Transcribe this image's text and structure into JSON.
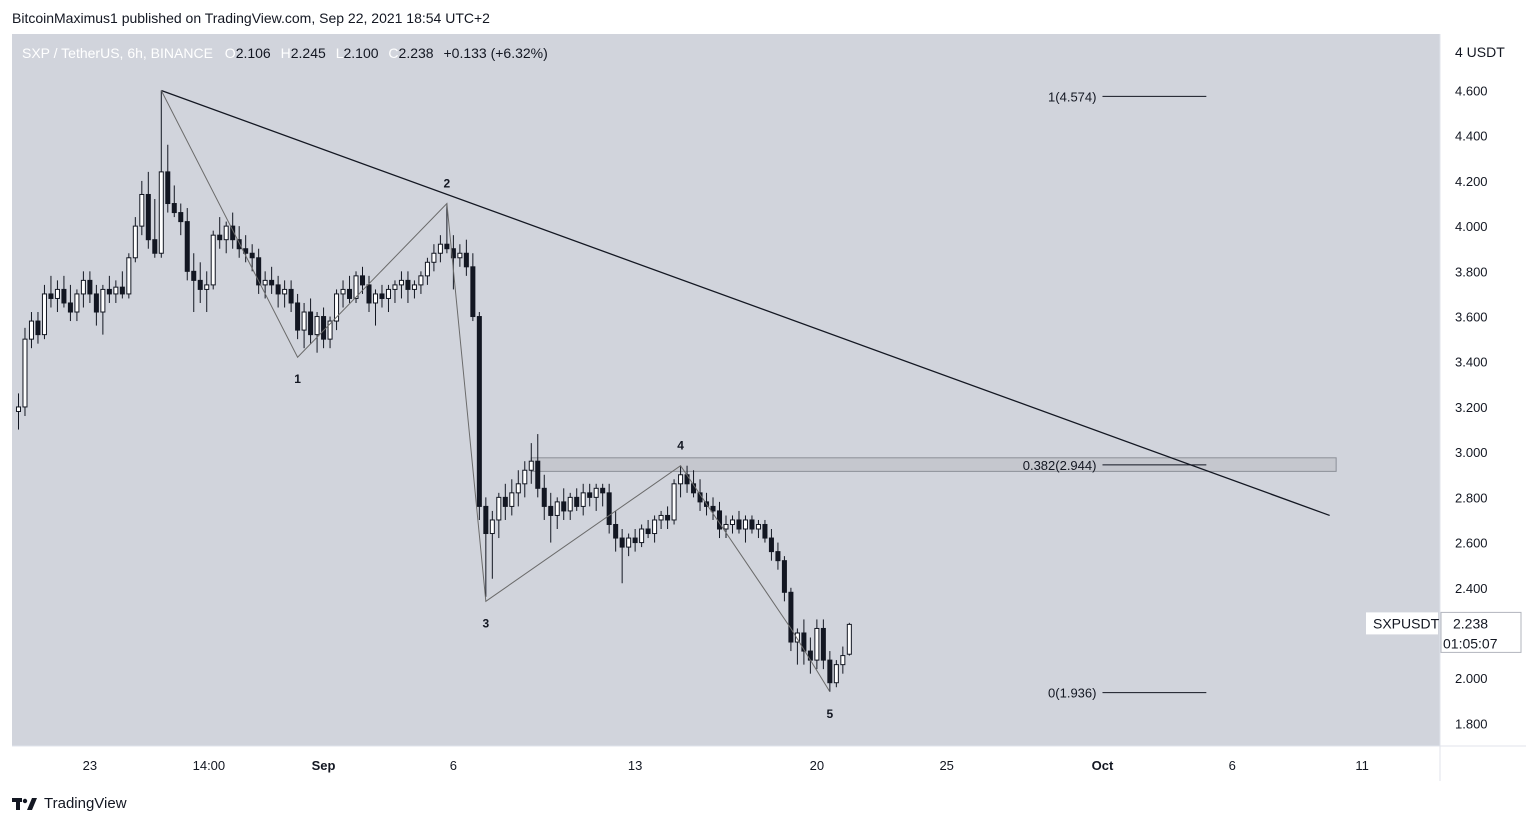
{
  "header": {
    "published_by": "BitcoinMaximus1 published on TradingView.com, Sep 22, 2021 18:54 UTC+2"
  },
  "footer": {
    "brand": "TradingView"
  },
  "colors": {
    "plot_bg": "#d1d4dc",
    "candle_up_fill": "#ffffff",
    "candle_down_fill": "#131722",
    "wick": "#131722",
    "trendline": "#131722",
    "wave_line": "#6b6b6b",
    "zone_fill": "#c5c7ce",
    "zone_border": "#8c8f98",
    "text": "#131722",
    "ohlc_label": "#ffffff"
  },
  "chart_data": {
    "type": "candlestick",
    "symbol": "SXP / TetherUS, 6h, BINANCE",
    "ohlc": {
      "o_label": "O",
      "o": "2.106",
      "h_label": "H",
      "h": "2.245",
      "l_label": "L",
      "l": "2.100",
      "c_label": "C",
      "c": "2.238",
      "change": "+0.133 (+6.32%)"
    },
    "y_axis": {
      "unit_label": "4 USDT",
      "range": [
        1.7,
        4.85
      ],
      "ticks": [
        "4.600",
        "4.400",
        "4.200",
        "4.000",
        "3.800",
        "3.600",
        "3.400",
        "3.200",
        "3.000",
        "2.800",
        "2.600",
        "2.400",
        "2.000",
        "1.800"
      ]
    },
    "x_axis": {
      "range": [
        "2021-08-20",
        "2021-10-14"
      ],
      "ticks": [
        {
          "label": "23",
          "date": "2021-08-23"
        },
        {
          "label": "14:00",
          "date": "2021-08-27T14:00"
        },
        {
          "label": "Sep",
          "date": "2021-09-01"
        },
        {
          "label": "6",
          "date": "2021-09-06"
        },
        {
          "label": "13",
          "date": "2021-09-13"
        },
        {
          "label": "20",
          "date": "2021-09-20"
        },
        {
          "label": "25",
          "date": "2021-09-25"
        },
        {
          "label": "Oct",
          "date": "2021-10-01"
        },
        {
          "label": "6",
          "date": "2021-10-06"
        },
        {
          "label": "11",
          "date": "2021-10-11"
        }
      ]
    },
    "candles": [
      {
        "t": "2021-08-20T06:00",
        "o": 3.18,
        "h": 3.26,
        "l": 3.1,
        "c": 3.2
      },
      {
        "t": "2021-08-20T12:00",
        "o": 3.2,
        "h": 3.55,
        "l": 3.16,
        "c": 3.5
      },
      {
        "t": "2021-08-20T18:00",
        "o": 3.5,
        "h": 3.62,
        "l": 3.46,
        "c": 3.58
      },
      {
        "t": "2021-08-21T00:00",
        "o": 3.58,
        "h": 3.62,
        "l": 3.48,
        "c": 3.52
      },
      {
        "t": "2021-08-21T06:00",
        "o": 3.52,
        "h": 3.74,
        "l": 3.5,
        "c": 3.7
      },
      {
        "t": "2021-08-21T12:00",
        "o": 3.7,
        "h": 3.78,
        "l": 3.64,
        "c": 3.68
      },
      {
        "t": "2021-08-21T18:00",
        "o": 3.68,
        "h": 3.76,
        "l": 3.62,
        "c": 3.72
      },
      {
        "t": "2021-08-22T00:00",
        "o": 3.72,
        "h": 3.78,
        "l": 3.64,
        "c": 3.66
      },
      {
        "t": "2021-08-22T06:00",
        "o": 3.66,
        "h": 3.74,
        "l": 3.58,
        "c": 3.62
      },
      {
        "t": "2021-08-22T12:00",
        "o": 3.62,
        "h": 3.72,
        "l": 3.58,
        "c": 3.7
      },
      {
        "t": "2021-08-22T18:00",
        "o": 3.7,
        "h": 3.8,
        "l": 3.64,
        "c": 3.76
      },
      {
        "t": "2021-08-23T00:00",
        "o": 3.76,
        "h": 3.8,
        "l": 3.66,
        "c": 3.7
      },
      {
        "t": "2021-08-23T06:00",
        "o": 3.7,
        "h": 3.74,
        "l": 3.56,
        "c": 3.62
      },
      {
        "t": "2021-08-23T12:00",
        "o": 3.62,
        "h": 3.74,
        "l": 3.52,
        "c": 3.72
      },
      {
        "t": "2021-08-23T18:00",
        "o": 3.72,
        "h": 3.78,
        "l": 3.66,
        "c": 3.7
      },
      {
        "t": "2021-08-24T00:00",
        "o": 3.7,
        "h": 3.76,
        "l": 3.66,
        "c": 3.73
      },
      {
        "t": "2021-08-24T06:00",
        "o": 3.73,
        "h": 3.8,
        "l": 3.68,
        "c": 3.7
      },
      {
        "t": "2021-08-24T12:00",
        "o": 3.7,
        "h": 3.88,
        "l": 3.68,
        "c": 3.86
      },
      {
        "t": "2021-08-24T18:00",
        "o": 3.86,
        "h": 4.04,
        "l": 3.84,
        "c": 4.0
      },
      {
        "t": "2021-08-25T00:00",
        "o": 4.0,
        "h": 4.2,
        "l": 3.96,
        "c": 4.14
      },
      {
        "t": "2021-08-25T06:00",
        "o": 4.14,
        "h": 4.24,
        "l": 3.9,
        "c": 3.94
      },
      {
        "t": "2021-08-25T12:00",
        "o": 3.94,
        "h": 4.12,
        "l": 3.86,
        "c": 3.88
      },
      {
        "t": "2021-08-25T18:00",
        "o": 3.88,
        "h": 4.6,
        "l": 3.86,
        "c": 4.24
      },
      {
        "t": "2021-08-26T00:00",
        "o": 4.24,
        "h": 4.36,
        "l": 4.06,
        "c": 4.1
      },
      {
        "t": "2021-08-26T06:00",
        "o": 4.1,
        "h": 4.18,
        "l": 4.04,
        "c": 4.06
      },
      {
        "t": "2021-08-26T12:00",
        "o": 4.06,
        "h": 4.1,
        "l": 3.96,
        "c": 4.02
      },
      {
        "t": "2021-08-26T18:00",
        "o": 4.02,
        "h": 4.08,
        "l": 3.76,
        "c": 3.8
      },
      {
        "t": "2021-08-27T00:00",
        "o": 3.8,
        "h": 3.88,
        "l": 3.62,
        "c": 3.76
      },
      {
        "t": "2021-08-27T06:00",
        "o": 3.76,
        "h": 3.84,
        "l": 3.66,
        "c": 3.72
      },
      {
        "t": "2021-08-27T12:00",
        "o": 3.72,
        "h": 3.8,
        "l": 3.62,
        "c": 3.74
      },
      {
        "t": "2021-08-27T18:00",
        "o": 3.74,
        "h": 3.98,
        "l": 3.72,
        "c": 3.96
      },
      {
        "t": "2021-08-28T00:00",
        "o": 3.96,
        "h": 4.04,
        "l": 3.9,
        "c": 3.94
      },
      {
        "t": "2021-08-28T06:00",
        "o": 3.94,
        "h": 4.02,
        "l": 3.88,
        "c": 4.0
      },
      {
        "t": "2021-08-28T12:00",
        "o": 4.0,
        "h": 4.06,
        "l": 3.9,
        "c": 3.94
      },
      {
        "t": "2021-08-28T18:00",
        "o": 3.94,
        "h": 4.0,
        "l": 3.86,
        "c": 3.9
      },
      {
        "t": "2021-08-29T00:00",
        "o": 3.9,
        "h": 3.96,
        "l": 3.84,
        "c": 3.88
      },
      {
        "t": "2021-08-29T06:00",
        "o": 3.88,
        "h": 3.92,
        "l": 3.8,
        "c": 3.86
      },
      {
        "t": "2021-08-29T12:00",
        "o": 3.86,
        "h": 3.9,
        "l": 3.7,
        "c": 3.74
      },
      {
        "t": "2021-08-29T18:00",
        "o": 3.74,
        "h": 3.8,
        "l": 3.68,
        "c": 3.76
      },
      {
        "t": "2021-08-30T00:00",
        "o": 3.76,
        "h": 3.82,
        "l": 3.7,
        "c": 3.74
      },
      {
        "t": "2021-08-30T06:00",
        "o": 3.74,
        "h": 3.78,
        "l": 3.64,
        "c": 3.7
      },
      {
        "t": "2021-08-30T12:00",
        "o": 3.7,
        "h": 3.76,
        "l": 3.64,
        "c": 3.72
      },
      {
        "t": "2021-08-30T18:00",
        "o": 3.72,
        "h": 3.76,
        "l": 3.62,
        "c": 3.66
      },
      {
        "t": "2021-08-31T00:00",
        "o": 3.66,
        "h": 3.7,
        "l": 3.5,
        "c": 3.54
      },
      {
        "t": "2021-08-31T06:00",
        "o": 3.54,
        "h": 3.66,
        "l": 3.46,
        "c": 3.62
      },
      {
        "t": "2021-08-31T12:00",
        "o": 3.62,
        "h": 3.68,
        "l": 3.48,
        "c": 3.52
      },
      {
        "t": "2021-08-31T18:00",
        "o": 3.52,
        "h": 3.62,
        "l": 3.44,
        "c": 3.6
      },
      {
        "t": "2021-09-01T00:00",
        "o": 3.6,
        "h": 3.64,
        "l": 3.46,
        "c": 3.5
      },
      {
        "t": "2021-09-01T06:00",
        "o": 3.5,
        "h": 3.6,
        "l": 3.46,
        "c": 3.58
      },
      {
        "t": "2021-09-01T12:00",
        "o": 3.58,
        "h": 3.72,
        "l": 3.54,
        "c": 3.7
      },
      {
        "t": "2021-09-01T18:00",
        "o": 3.7,
        "h": 3.76,
        "l": 3.64,
        "c": 3.72
      },
      {
        "t": "2021-09-02T00:00",
        "o": 3.72,
        "h": 3.78,
        "l": 3.66,
        "c": 3.68
      },
      {
        "t": "2021-09-02T06:00",
        "o": 3.68,
        "h": 3.8,
        "l": 3.66,
        "c": 3.78
      },
      {
        "t": "2021-09-02T12:00",
        "o": 3.78,
        "h": 3.82,
        "l": 3.7,
        "c": 3.74
      },
      {
        "t": "2021-09-02T18:00",
        "o": 3.74,
        "h": 3.78,
        "l": 3.62,
        "c": 3.66
      },
      {
        "t": "2021-09-03T00:00",
        "o": 3.66,
        "h": 3.72,
        "l": 3.56,
        "c": 3.7
      },
      {
        "t": "2021-09-03T06:00",
        "o": 3.7,
        "h": 3.74,
        "l": 3.64,
        "c": 3.68
      },
      {
        "t": "2021-09-03T12:00",
        "o": 3.68,
        "h": 3.74,
        "l": 3.62,
        "c": 3.72
      },
      {
        "t": "2021-09-03T18:00",
        "o": 3.72,
        "h": 3.76,
        "l": 3.66,
        "c": 3.74
      },
      {
        "t": "2021-09-04T00:00",
        "o": 3.74,
        "h": 3.8,
        "l": 3.68,
        "c": 3.76
      },
      {
        "t": "2021-09-04T06:00",
        "o": 3.76,
        "h": 3.8,
        "l": 3.66,
        "c": 3.72
      },
      {
        "t": "2021-09-04T12:00",
        "o": 3.72,
        "h": 3.76,
        "l": 3.68,
        "c": 3.74
      },
      {
        "t": "2021-09-04T18:00",
        "o": 3.74,
        "h": 3.8,
        "l": 3.7,
        "c": 3.78
      },
      {
        "t": "2021-09-05T00:00",
        "o": 3.78,
        "h": 3.86,
        "l": 3.74,
        "c": 3.84
      },
      {
        "t": "2021-09-05T06:00",
        "o": 3.84,
        "h": 3.92,
        "l": 3.8,
        "c": 3.88
      },
      {
        "t": "2021-09-05T12:00",
        "o": 3.88,
        "h": 3.96,
        "l": 3.84,
        "c": 3.92
      },
      {
        "t": "2021-09-05T18:00",
        "o": 3.92,
        "h": 4.1,
        "l": 3.88,
        "c": 3.9
      },
      {
        "t": "2021-09-06T00:00",
        "o": 3.9,
        "h": 3.96,
        "l": 3.72,
        "c": 3.86
      },
      {
        "t": "2021-09-06T06:00",
        "o": 3.86,
        "h": 3.92,
        "l": 3.82,
        "c": 3.88
      },
      {
        "t": "2021-09-06T12:00",
        "o": 3.88,
        "h": 3.94,
        "l": 3.78,
        "c": 3.82
      },
      {
        "t": "2021-09-06T18:00",
        "o": 3.82,
        "h": 3.88,
        "l": 3.58,
        "c": 3.6
      },
      {
        "t": "2021-09-07T00:00",
        "o": 3.6,
        "h": 3.62,
        "l": 2.7,
        "c": 2.76
      },
      {
        "t": "2021-09-07T06:00",
        "o": 2.76,
        "h": 2.8,
        "l": 2.36,
        "c": 2.64
      },
      {
        "t": "2021-09-07T12:00",
        "o": 2.64,
        "h": 2.74,
        "l": 2.44,
        "c": 2.7
      },
      {
        "t": "2021-09-07T18:00",
        "o": 2.7,
        "h": 2.82,
        "l": 2.62,
        "c": 2.8
      },
      {
        "t": "2021-09-08T00:00",
        "o": 2.8,
        "h": 2.86,
        "l": 2.7,
        "c": 2.76
      },
      {
        "t": "2021-09-08T06:00",
        "o": 2.76,
        "h": 2.88,
        "l": 2.72,
        "c": 2.82
      },
      {
        "t": "2021-09-08T12:00",
        "o": 2.82,
        "h": 2.92,
        "l": 2.76,
        "c": 2.86
      },
      {
        "t": "2021-09-08T18:00",
        "o": 2.86,
        "h": 2.96,
        "l": 2.8,
        "c": 2.92
      },
      {
        "t": "2021-09-09T00:00",
        "o": 2.92,
        "h": 3.04,
        "l": 2.86,
        "c": 2.96
      },
      {
        "t": "2021-09-09T06:00",
        "o": 2.96,
        "h": 3.08,
        "l": 2.8,
        "c": 2.84
      },
      {
        "t": "2021-09-09T12:00",
        "o": 2.84,
        "h": 2.9,
        "l": 2.7,
        "c": 2.76
      },
      {
        "t": "2021-09-09T18:00",
        "o": 2.76,
        "h": 2.82,
        "l": 2.6,
        "c": 2.72
      },
      {
        "t": "2021-09-10T00:00",
        "o": 2.72,
        "h": 2.8,
        "l": 2.66,
        "c": 2.78
      },
      {
        "t": "2021-09-10T06:00",
        "o": 2.78,
        "h": 2.84,
        "l": 2.7,
        "c": 2.74
      },
      {
        "t": "2021-09-10T12:00",
        "o": 2.74,
        "h": 2.82,
        "l": 2.7,
        "c": 2.8
      },
      {
        "t": "2021-09-10T18:00",
        "o": 2.8,
        "h": 2.84,
        "l": 2.74,
        "c": 2.76
      },
      {
        "t": "2021-09-11T00:00",
        "o": 2.76,
        "h": 2.86,
        "l": 2.72,
        "c": 2.82
      },
      {
        "t": "2021-09-11T06:00",
        "o": 2.82,
        "h": 2.86,
        "l": 2.76,
        "c": 2.8
      },
      {
        "t": "2021-09-11T12:00",
        "o": 2.8,
        "h": 2.86,
        "l": 2.74,
        "c": 2.84
      },
      {
        "t": "2021-09-11T18:00",
        "o": 2.84,
        "h": 2.86,
        "l": 2.76,
        "c": 2.82
      },
      {
        "t": "2021-09-12T00:00",
        "o": 2.82,
        "h": 2.86,
        "l": 2.64,
        "c": 2.68
      },
      {
        "t": "2021-09-12T06:00",
        "o": 2.68,
        "h": 2.74,
        "l": 2.56,
        "c": 2.62
      },
      {
        "t": "2021-09-12T12:00",
        "o": 2.62,
        "h": 2.66,
        "l": 2.42,
        "c": 2.58
      },
      {
        "t": "2021-09-12T18:00",
        "o": 2.58,
        "h": 2.64,
        "l": 2.54,
        "c": 2.62
      },
      {
        "t": "2021-09-13T00:00",
        "o": 2.62,
        "h": 2.66,
        "l": 2.56,
        "c": 2.6
      },
      {
        "t": "2021-09-13T06:00",
        "o": 2.6,
        "h": 2.68,
        "l": 2.58,
        "c": 2.66
      },
      {
        "t": "2021-09-13T12:00",
        "o": 2.66,
        "h": 2.7,
        "l": 2.62,
        "c": 2.64
      },
      {
        "t": "2021-09-13T18:00",
        "o": 2.64,
        "h": 2.72,
        "l": 2.6,
        "c": 2.7
      },
      {
        "t": "2021-09-14T00:00",
        "o": 2.7,
        "h": 2.74,
        "l": 2.66,
        "c": 2.72
      },
      {
        "t": "2021-09-14T06:00",
        "o": 2.72,
        "h": 2.76,
        "l": 2.66,
        "c": 2.7
      },
      {
        "t": "2021-09-14T12:00",
        "o": 2.7,
        "h": 2.88,
        "l": 2.68,
        "c": 2.86
      },
      {
        "t": "2021-09-14T18:00",
        "o": 2.86,
        "h": 2.94,
        "l": 2.8,
        "c": 2.9
      },
      {
        "t": "2021-09-15T00:00",
        "o": 2.9,
        "h": 2.94,
        "l": 2.82,
        "c": 2.86
      },
      {
        "t": "2021-09-15T06:00",
        "o": 2.86,
        "h": 2.92,
        "l": 2.8,
        "c": 2.82
      },
      {
        "t": "2021-09-15T12:00",
        "o": 2.82,
        "h": 2.88,
        "l": 2.74,
        "c": 2.78
      },
      {
        "t": "2021-09-15T18:00",
        "o": 2.78,
        "h": 2.82,
        "l": 2.72,
        "c": 2.76
      },
      {
        "t": "2021-09-16T00:00",
        "o": 2.76,
        "h": 2.8,
        "l": 2.7,
        "c": 2.74
      },
      {
        "t": "2021-09-16T06:00",
        "o": 2.74,
        "h": 2.78,
        "l": 2.62,
        "c": 2.66
      },
      {
        "t": "2021-09-16T12:00",
        "o": 2.66,
        "h": 2.72,
        "l": 2.62,
        "c": 2.68
      },
      {
        "t": "2021-09-16T18:00",
        "o": 2.68,
        "h": 2.72,
        "l": 2.64,
        "c": 2.7
      },
      {
        "t": "2021-09-17T00:00",
        "o": 2.7,
        "h": 2.74,
        "l": 2.64,
        "c": 2.66
      },
      {
        "t": "2021-09-17T06:00",
        "o": 2.66,
        "h": 2.72,
        "l": 2.6,
        "c": 2.7
      },
      {
        "t": "2021-09-17T12:00",
        "o": 2.7,
        "h": 2.72,
        "l": 2.64,
        "c": 2.66
      },
      {
        "t": "2021-09-17T18:00",
        "o": 2.66,
        "h": 2.7,
        "l": 2.62,
        "c": 2.68
      },
      {
        "t": "2021-09-18T00:00",
        "o": 2.68,
        "h": 2.7,
        "l": 2.6,
        "c": 2.62
      },
      {
        "t": "2021-09-18T06:00",
        "o": 2.62,
        "h": 2.66,
        "l": 2.52,
        "c": 2.56
      },
      {
        "t": "2021-09-18T12:00",
        "o": 2.56,
        "h": 2.6,
        "l": 2.48,
        "c": 2.52
      },
      {
        "t": "2021-09-18T18:00",
        "o": 2.52,
        "h": 2.54,
        "l": 2.34,
        "c": 2.38
      },
      {
        "t": "2021-09-19T00:00",
        "o": 2.38,
        "h": 2.4,
        "l": 2.12,
        "c": 2.16
      },
      {
        "t": "2021-09-19T06:00",
        "o": 2.16,
        "h": 2.22,
        "l": 2.06,
        "c": 2.2
      },
      {
        "t": "2021-09-19T12:00",
        "o": 2.2,
        "h": 2.26,
        "l": 2.06,
        "c": 2.12
      },
      {
        "t": "2021-09-19T18:00",
        "o": 2.12,
        "h": 2.18,
        "l": 2.02,
        "c": 2.08
      },
      {
        "t": "2021-09-20T00:00",
        "o": 2.08,
        "h": 2.26,
        "l": 2.04,
        "c": 2.22
      },
      {
        "t": "2021-09-20T06:00",
        "o": 2.22,
        "h": 2.26,
        "l": 2.04,
        "c": 2.08
      },
      {
        "t": "2021-09-20T12:00",
        "o": 2.08,
        "h": 2.12,
        "l": 1.94,
        "c": 1.98
      },
      {
        "t": "2021-09-20T18:00",
        "o": 1.98,
        "h": 2.08,
        "l": 1.96,
        "c": 2.06
      },
      {
        "t": "2021-09-21T00:00",
        "o": 2.06,
        "h": 2.14,
        "l": 2.02,
        "c": 2.1
      },
      {
        "t": "2021-09-21T06:00",
        "o": 2.106,
        "h": 2.245,
        "l": 2.1,
        "c": 2.238
      }
    ],
    "trendline": {
      "from": {
        "t": "2021-08-25T18:00",
        "price": 4.6
      },
      "to": {
        "t": "2021-10-09T18:00",
        "price": 2.72
      }
    },
    "wave_path": [
      {
        "t": "2021-08-25T18:00",
        "price": 4.6
      },
      {
        "t": "2021-08-31T00:00",
        "price": 3.42
      },
      {
        "t": "2021-09-05T18:00",
        "price": 4.1
      },
      {
        "t": "2021-09-07T06:00",
        "price": 2.34
      },
      {
        "t": "2021-09-14T18:00",
        "price": 2.94
      },
      {
        "t": "2021-09-19T00:00",
        "price": 2.22
      },
      {
        "t": "2021-09-20T12:00",
        "price": 1.94
      }
    ],
    "wave_labels": [
      {
        "text": "1",
        "t": "2021-08-31T00:00",
        "price": 3.42,
        "pos": "below"
      },
      {
        "text": "2",
        "t": "2021-09-05T18:00",
        "price": 4.1,
        "pos": "above"
      },
      {
        "text": "3",
        "t": "2021-09-07T06:00",
        "price": 2.34,
        "pos": "below"
      },
      {
        "text": "4",
        "t": "2021-09-14T18:00",
        "price": 2.94,
        "pos": "above"
      },
      {
        "text": "5",
        "t": "2021-09-20T12:00",
        "price": 1.94,
        "pos": "below"
      }
    ],
    "resistance_zone": {
      "from_t": "2021-09-09T00:00",
      "to_t": "2021-10-10T00:00",
      "low": 2.915,
      "high": 2.975
    },
    "fib_levels": [
      {
        "label": "1(4.574)",
        "price": 4.574
      },
      {
        "label": "0.382(2.944)",
        "price": 2.944
      },
      {
        "label": "0(1.936)",
        "price": 1.936
      }
    ],
    "fib_x": {
      "from_t": "2021-10-01T00:00",
      "to_t": "2021-10-05T00:00"
    },
    "last_price": {
      "symbol": "SXPUSDT",
      "price": "2.238",
      "countdown": "01:05:07"
    }
  }
}
